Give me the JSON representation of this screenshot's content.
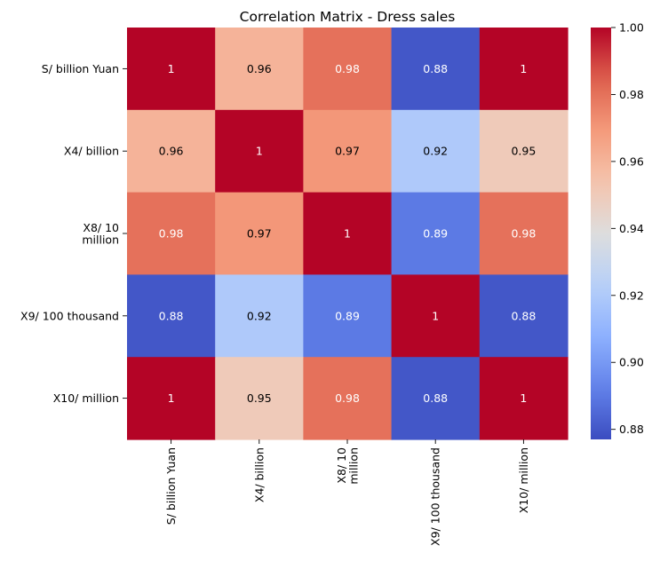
{
  "chart_data": {
    "type": "heatmap",
    "title": "Correlation Matrix - Dress sales",
    "row_labels": [
      [
        "S/ billion Yuan"
      ],
      [
        "X4/ billion"
      ],
      [
        "X8/ 10",
        "million"
      ],
      [
        "X9/ 100 thousand"
      ],
      [
        "X10/ million"
      ]
    ],
    "col_labels": [
      [
        "S/ billion Yuan"
      ],
      [
        "X4/ billion"
      ],
      [
        "X8/ 10",
        "million"
      ],
      [
        "X9/ 100 thousand"
      ],
      [
        "X10/ million"
      ]
    ],
    "values": [
      [
        1.0,
        0.96,
        0.98,
        0.88,
        1.0
      ],
      [
        0.96,
        1.0,
        0.97,
        0.92,
        0.95
      ],
      [
        0.98,
        0.97,
        1.0,
        0.89,
        0.98
      ],
      [
        0.88,
        0.92,
        0.89,
        1.0,
        0.88
      ],
      [
        1.0,
        0.95,
        0.98,
        0.88,
        1.0
      ]
    ],
    "annotations": [
      [
        "1",
        "0.96",
        "0.98",
        "0.88",
        "1"
      ],
      [
        "0.96",
        "1",
        "0.97",
        "0.92",
        "0.95"
      ],
      [
        "0.98",
        "0.97",
        "1",
        "0.89",
        "0.98"
      ],
      [
        "0.88",
        "0.92",
        "0.89",
        "1",
        "0.88"
      ],
      [
        "1",
        "0.95",
        "0.98",
        "0.88",
        "1"
      ]
    ],
    "colormap": "coolwarm",
    "vmin": 0.877,
    "vmax": 1.0,
    "colorbar_ticks": [
      0.88,
      0.9,
      0.92,
      0.94,
      0.96,
      0.98,
      1.0
    ],
    "colorbar_tick_labels": [
      "0.88",
      "0.90",
      "0.92",
      "0.94",
      "0.96",
      "0.98",
      "1.00"
    ],
    "grid": false,
    "colors": {
      "cold_text": "#ffffff",
      "hot_text": "#000000"
    }
  }
}
